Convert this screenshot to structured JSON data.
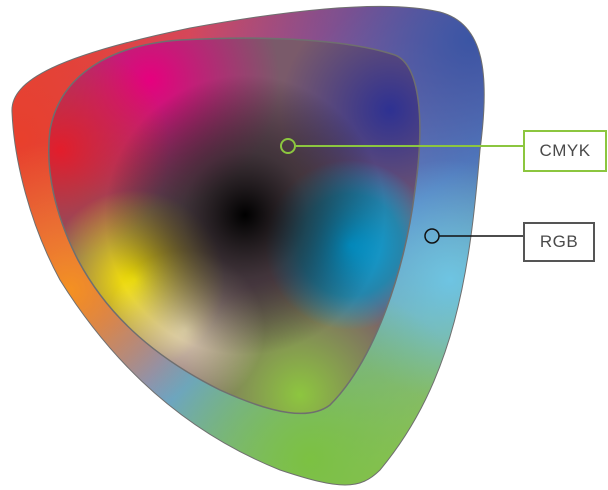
{
  "labels": {
    "cmyk": "CMYK",
    "rgb": "RGB"
  },
  "colors": {
    "cmyk_callout": "#8cc63f",
    "rgb_callout": "#555555",
    "label_text": "#4a4a4a",
    "gamut_outline": "#6f6f6f",
    "cyan": "#00aeef",
    "magenta": "#e6007e",
    "yellow": "#ffed00",
    "black": "#000000",
    "red": "#e84a3a",
    "green": "#7cc142",
    "blue": "#3a5aa8"
  }
}
